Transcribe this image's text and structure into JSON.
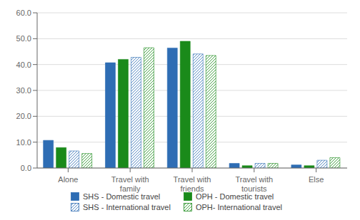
{
  "chart_data": {
    "type": "bar",
    "categories": [
      "Alone",
      "Travel with\nfamily",
      "Travel with\nfriends",
      "Travel with\ntourists",
      "Else"
    ],
    "series": [
      {
        "name": "SHS - Domestic travel",
        "color": "#2e6db4",
        "values": [
          10.7,
          40.7,
          46.4,
          1.8,
          1.2
        ]
      },
      {
        "name": "OPH - Domestic travel",
        "color": "#1a8a1a",
        "values": [
          7.9,
          42.0,
          49.0,
          0.9,
          0.9
        ]
      },
      {
        "name": "SHS - International travel",
        "color": "#2e6db4",
        "values": [
          6.6,
          42.8,
          44.1,
          1.8,
          3.0
        ]
      },
      {
        "name": "OPH- International travel",
        "color": "#1a8a1a",
        "values": [
          5.6,
          46.5,
          43.5,
          1.8,
          4.0
        ]
      }
    ],
    "ylim": [
      0,
      60
    ],
    "yticks": [
      {
        "value": 0,
        "label": "0.0"
      },
      {
        "value": 10,
        "label": "10.0"
      },
      {
        "value": 20,
        "label": "20.0"
      },
      {
        "value": 30,
        "label": "30.0"
      },
      {
        "value": 40,
        "label": "40.0"
      },
      {
        "value": 50,
        "label": "50.0"
      },
      {
        "value": 60,
        "label": "60.0"
      }
    ],
    "grid": true
  }
}
